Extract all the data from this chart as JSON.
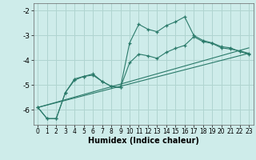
{
  "xlabel": "Humidex (Indice chaleur)",
  "background_color": "#ceecea",
  "grid_color": "#b0d4d0",
  "line_color": "#2a7a6a",
  "xlim": [
    -0.5,
    23.5
  ],
  "ylim": [
    -6.6,
    -1.7
  ],
  "yticks": [
    -6,
    -5,
    -4,
    -3,
    -2
  ],
  "xticks": [
    0,
    1,
    2,
    3,
    4,
    5,
    6,
    7,
    8,
    9,
    10,
    11,
    12,
    13,
    14,
    15,
    16,
    17,
    18,
    19,
    20,
    21,
    22,
    23
  ],
  "line1_x": [
    0,
    1,
    2,
    3,
    4,
    5,
    6,
    7,
    8,
    9,
    10,
    11,
    12,
    13,
    14,
    15,
    16,
    17,
    18,
    19,
    20,
    21,
    22,
    23
  ],
  "line1_y": [
    -5.9,
    -6.35,
    -6.35,
    -5.3,
    -4.75,
    -4.65,
    -4.55,
    -4.85,
    -5.05,
    -5.1,
    -3.3,
    -2.55,
    -2.75,
    -2.85,
    -2.6,
    -2.45,
    -2.25,
    -3.0,
    -3.2,
    -3.3,
    -3.45,
    -3.5,
    -3.65,
    -3.75
  ],
  "line2_x": [
    0,
    1,
    2,
    3,
    4,
    5,
    6,
    7,
    8,
    9,
    10,
    11,
    12,
    13,
    14,
    15,
    16,
    17,
    18,
    19,
    20,
    21,
    22,
    23
  ],
  "line2_y": [
    -5.9,
    -6.35,
    -6.35,
    -5.3,
    -4.8,
    -4.65,
    -4.6,
    -4.85,
    -5.05,
    -5.1,
    -4.1,
    -3.75,
    -3.82,
    -3.92,
    -3.68,
    -3.52,
    -3.4,
    -3.05,
    -3.25,
    -3.32,
    -3.5,
    -3.55,
    -3.62,
    -3.72
  ],
  "line3_x": [
    0,
    23
  ],
  "line3_y": [
    -5.9,
    -3.5
  ],
  "line4_x": [
    0,
    23
  ],
  "line4_y": [
    -5.9,
    -3.72
  ]
}
